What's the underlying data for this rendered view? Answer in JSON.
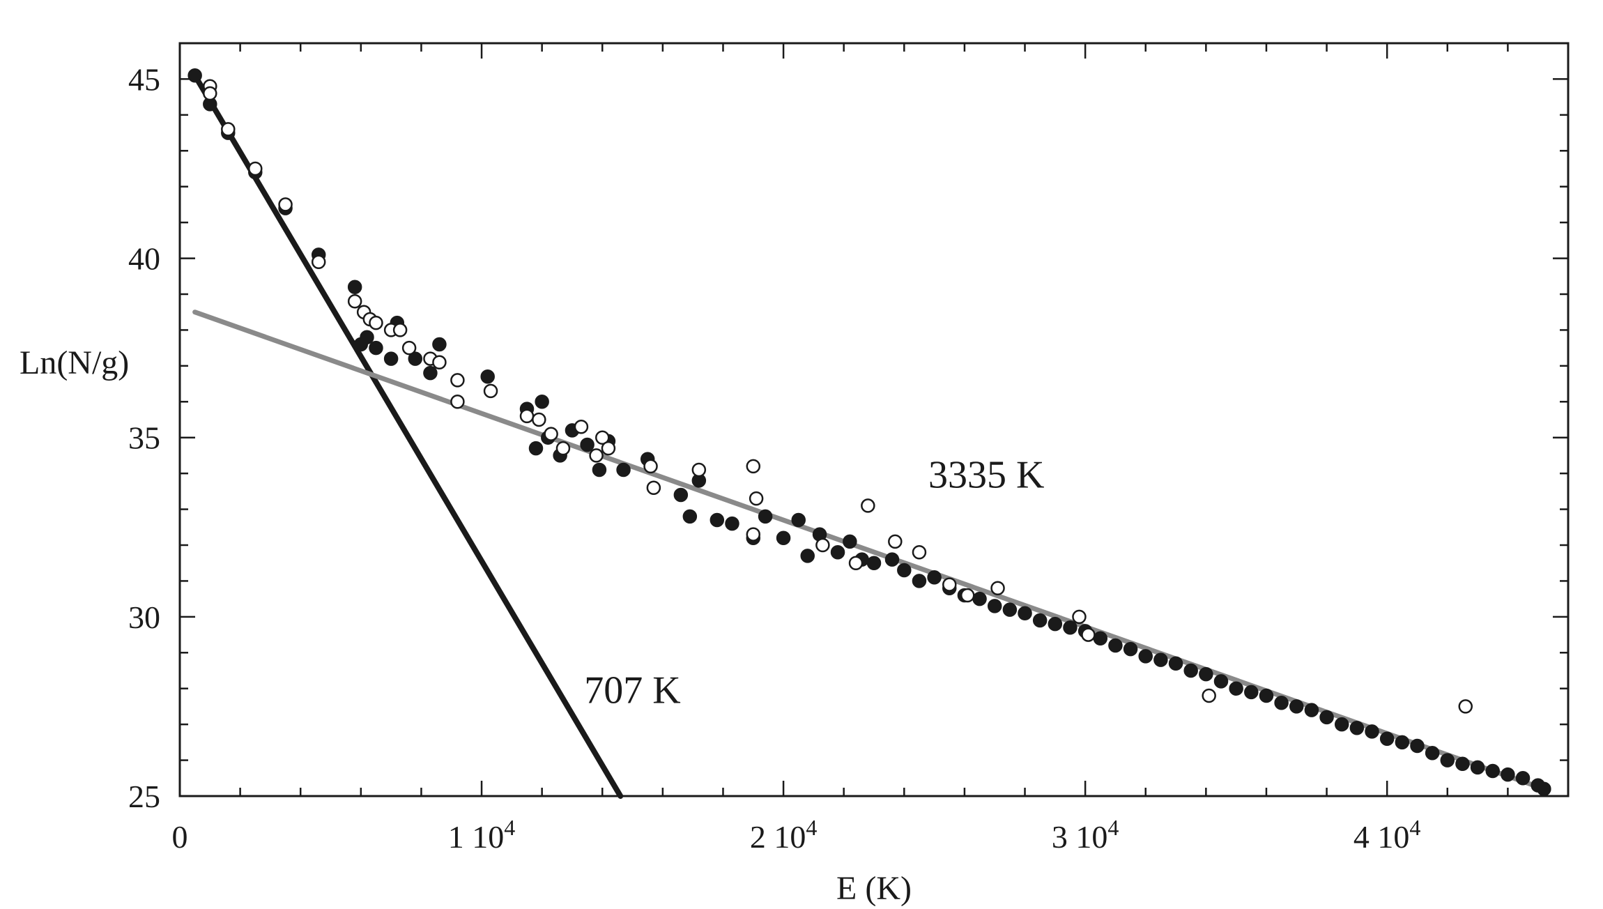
{
  "chart_data": {
    "type": "scatter",
    "xlabel": "E (K)",
    "ylabel": "Ln(N/g)",
    "xlim": [
      0,
      46000
    ],
    "ylim": [
      25,
      46
    ],
    "x_ticks": [
      {
        "value": 0,
        "label": "0",
        "exp": ""
      },
      {
        "value": 10000,
        "label": "1 10",
        "exp": "4"
      },
      {
        "value": 20000,
        "label": "2 10",
        "exp": "4"
      },
      {
        "value": 30000,
        "label": "3 10",
        "exp": "4"
      },
      {
        "value": 40000,
        "label": "4 10",
        "exp": "4"
      }
    ],
    "y_ticks": [
      {
        "value": 25,
        "label": "25"
      },
      {
        "value": 30,
        "label": "30"
      },
      {
        "value": 35,
        "label": "35"
      },
      {
        "value": 40,
        "label": "40"
      },
      {
        "value": 45,
        "label": "45"
      }
    ],
    "grid": false,
    "lines": [
      {
        "label": "707 K",
        "x": [
          500,
          14600
        ],
        "y": [
          45.1,
          25.0
        ],
        "color": "#1a1a1a"
      },
      {
        "label": "3335 K",
        "x": [
          500,
          45200
        ],
        "y": [
          38.5,
          25.2
        ],
        "color": "#8a8a8a"
      }
    ],
    "annotations": [
      {
        "text": "707 K",
        "x": 13400,
        "y": 27.6
      },
      {
        "text": "3335 K",
        "x": 24800,
        "y": 33.6
      }
    ],
    "series": [
      {
        "marker": "filled",
        "color": "#1a1a1a",
        "x": [
          500,
          1000,
          1600,
          2500,
          3500,
          4600,
          5800,
          6000,
          6200,
          6500,
          7000,
          7200,
          7800,
          8300,
          8600,
          10200,
          11500,
          11800,
          12000,
          12200,
          12600,
          13000,
          13500,
          13900,
          14200,
          14700,
          15500,
          16600,
          16900,
          17200,
          17800,
          18300,
          19000,
          19400,
          20000,
          20500,
          20800,
          21200,
          21800,
          22200,
          22600,
          23000,
          23600,
          24000,
          24500,
          25000,
          25500,
          26000,
          26500,
          27000,
          27500,
          28000,
          28500,
          29000,
          29500,
          30000,
          30500,
          31000,
          31500,
          32000,
          32500,
          33000,
          33500,
          34000,
          34500,
          35000,
          35500,
          36000,
          36500,
          37000,
          37500,
          38000,
          38500,
          39000,
          39500,
          40000,
          40500,
          41000,
          41500,
          42000,
          42500,
          43000,
          43500,
          44000,
          44500,
          45000,
          45200
        ],
        "y": [
          45.1,
          44.3,
          43.5,
          42.4,
          41.4,
          40.1,
          39.2,
          37.6,
          37.8,
          37.5,
          37.2,
          38.2,
          37.2,
          36.8,
          37.6,
          36.7,
          35.8,
          34.7,
          36.0,
          35.0,
          34.5,
          35.2,
          34.8,
          34.1,
          34.9,
          34.1,
          34.4,
          33.4,
          32.8,
          33.8,
          32.7,
          32.6,
          32.2,
          32.8,
          32.2,
          32.7,
          31.7,
          32.3,
          31.8,
          32.1,
          31.6,
          31.5,
          31.6,
          31.3,
          31.0,
          31.1,
          30.8,
          30.6,
          30.5,
          30.3,
          30.2,
          30.1,
          29.9,
          29.8,
          29.7,
          29.6,
          29.4,
          29.2,
          29.1,
          28.9,
          28.8,
          28.7,
          28.5,
          28.4,
          28.2,
          28.0,
          27.9,
          27.8,
          27.6,
          27.5,
          27.4,
          27.2,
          27.0,
          26.9,
          26.8,
          26.6,
          26.5,
          26.4,
          26.2,
          26.0,
          25.9,
          25.8,
          25.7,
          25.6,
          25.5,
          25.3,
          25.2
        ]
      },
      {
        "marker": "open",
        "color": "#1a1a1a",
        "x": [
          1000,
          1000,
          1600,
          2500,
          3500,
          4600,
          5800,
          6100,
          6300,
          6500,
          7000,
          7300,
          7600,
          8300,
          8600,
          9200,
          9200,
          10300,
          11500,
          11900,
          12300,
          12700,
          13300,
          13800,
          14000,
          14200,
          15600,
          15700,
          17200,
          19000,
          19100,
          19000,
          21300,
          22400,
          22800,
          23700,
          24500,
          25500,
          26100,
          27100,
          29800,
          30100,
          34100,
          42600
        ],
        "y": [
          44.8,
          44.6,
          43.6,
          42.5,
          41.5,
          39.9,
          38.8,
          38.5,
          38.3,
          38.2,
          38.0,
          38.0,
          37.5,
          37.2,
          37.1,
          36.6,
          36.0,
          36.3,
          35.6,
          35.5,
          35.1,
          34.7,
          35.3,
          34.5,
          35.0,
          34.7,
          34.2,
          33.6,
          34.1,
          34.2,
          33.3,
          32.3,
          32.0,
          31.5,
          33.1,
          32.1,
          31.8,
          30.9,
          30.6,
          30.8,
          30.0,
          29.5,
          27.8,
          27.5
        ]
      }
    ]
  }
}
